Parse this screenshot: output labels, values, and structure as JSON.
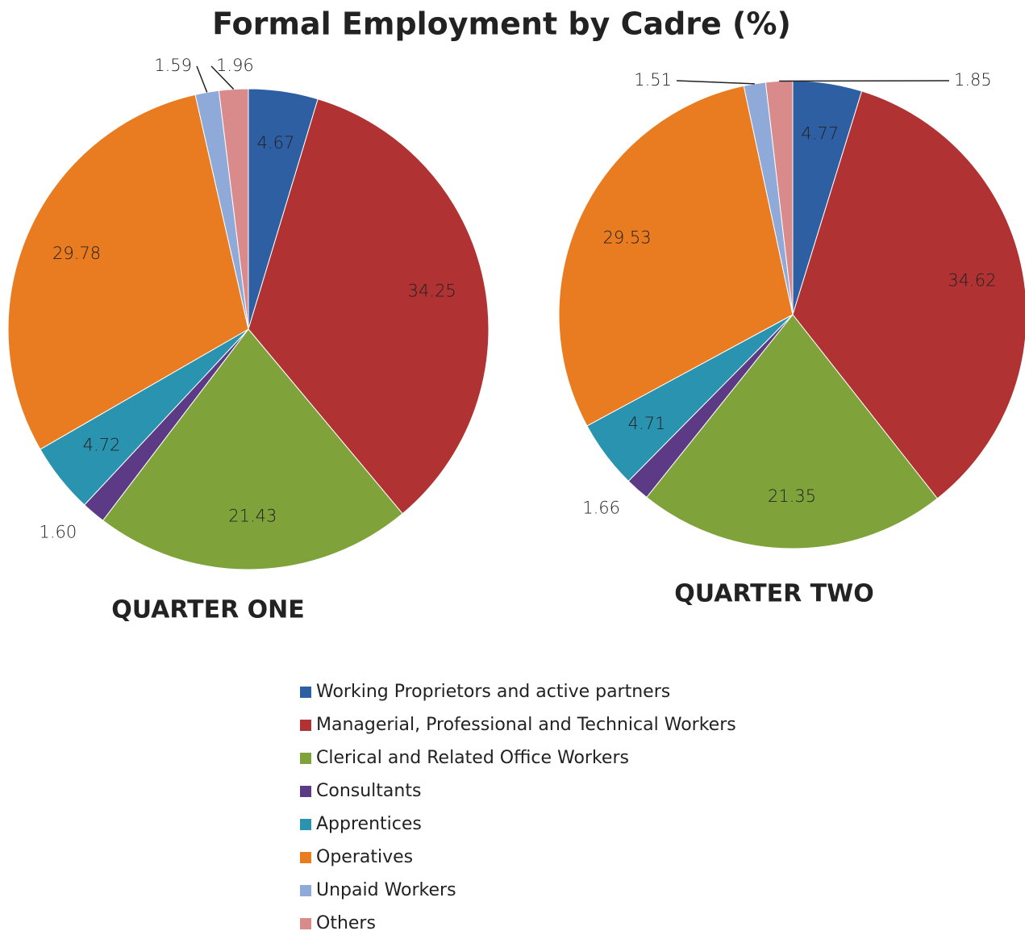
{
  "title": "Formal Employment by Cadre (%)",
  "categories": [
    "Working Proprietors and active partners",
    "Managerial, Professional and Technical Workers",
    "Clerical and Related Office Workers",
    "Consultants",
    "Apprentices",
    "Operatives",
    "Unpaid Workers",
    "Others"
  ],
  "colors": [
    "#2e5fa3",
    "#b03232",
    "#7fa33a",
    "#5c3a85",
    "#2a93b0",
    "#e97b20",
    "#8faad9",
    "#d98a8a"
  ],
  "chart_data": [
    {
      "type": "pie",
      "title": "QUARTER ONE",
      "values": [
        4.67,
        34.25,
        21.43,
        1.6,
        4.72,
        29.78,
        1.59,
        1.96
      ],
      "value_labels": [
        "4.67",
        "34.25",
        "21.43",
        "1.60",
        "4.72",
        "29.78",
        "1.59",
        "1.96"
      ]
    },
    {
      "type": "pie",
      "title": "QUARTER TWO",
      "values": [
        4.77,
        34.62,
        21.35,
        1.66,
        4.71,
        29.53,
        1.51,
        1.85
      ]
    }
  ]
}
